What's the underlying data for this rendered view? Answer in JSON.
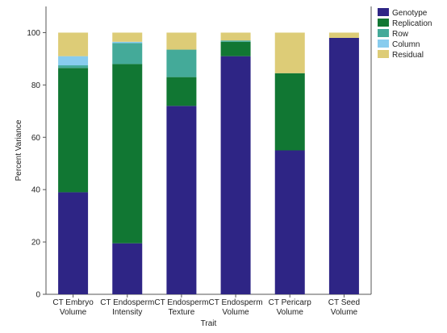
{
  "chart_data": {
    "type": "bar",
    "stacked": true,
    "xlabel": "Trait",
    "ylabel": "Percent Variance",
    "ylim": [
      0,
      110
    ],
    "yticks": [
      0,
      20,
      40,
      60,
      80,
      100
    ],
    "grid": false,
    "legend_position": "right",
    "categories": [
      [
        "CT Embryo",
        "Volume"
      ],
      [
        "CT Endosperm",
        "Intensity"
      ],
      [
        "CT Endosperm",
        "Texture"
      ],
      [
        "CT Endosperm",
        "Volume"
      ],
      [
        "CT Pericarp",
        "Volume"
      ],
      [
        "CT Seed",
        "Volume"
      ]
    ],
    "series": [
      {
        "name": "Genotype",
        "color": "#2e2585",
        "values": [
          39,
          19.5,
          72,
          91,
          55,
          98
        ]
      },
      {
        "name": "Replication",
        "color": "#117733",
        "values": [
          47.5,
          68.5,
          11,
          5.5,
          29.5,
          0
        ]
      },
      {
        "name": "Row",
        "color": "#44aa99",
        "values": [
          1,
          8,
          10.5,
          0.5,
          0,
          0
        ]
      },
      {
        "name": "Column",
        "color": "#88ccee",
        "values": [
          3.5,
          0.5,
          0,
          0,
          0,
          0
        ]
      },
      {
        "name": "Residual",
        "color": "#ddcc77",
        "values": [
          9,
          3.5,
          6.5,
          3,
          15.5,
          2
        ]
      }
    ]
  }
}
